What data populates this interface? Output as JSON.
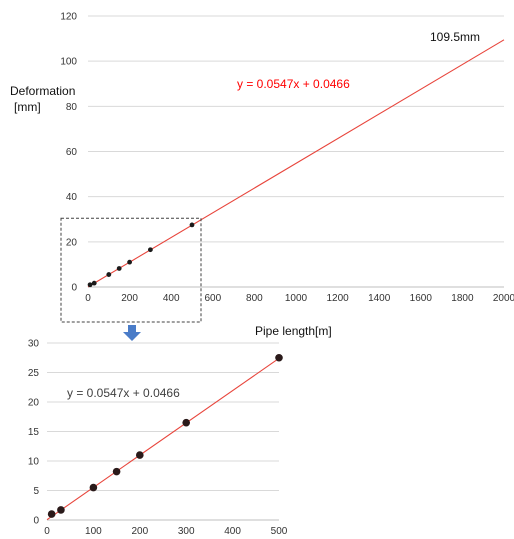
{
  "chart_data": [
    {
      "type": "scatter",
      "ylabel_line1": "Deformation",
      "ylabel_line2": "[mm]",
      "xlabel": "Pipe length[m]",
      "xlim": [
        0,
        2000
      ],
      "ylim": [
        0,
        120
      ],
      "xticks": [
        0,
        200,
        400,
        600,
        800,
        1000,
        1200,
        1400,
        1600,
        1800,
        2000
      ],
      "yticks": [
        0,
        20,
        40,
        60,
        80,
        100,
        120
      ],
      "grid": "horizontal",
      "series": [
        {
          "x": [
            10,
            30,
            100,
            150,
            200,
            300,
            500
          ],
          "y": [
            1.0,
            1.7,
            5.5,
            8.2,
            11.0,
            16.5,
            27.5
          ]
        }
      ],
      "trendline": {
        "slope": 0.0547,
        "intercept": 0.0466,
        "x_range": [
          0,
          2000
        ]
      },
      "equation": "y = 0.0547x + 0.0466",
      "equation_color": "#ff0000",
      "annotation": "109.5mm",
      "trend_color": "#e8453c",
      "marker_color": "#1a1a1a",
      "zoom_box": "dashed"
    },
    {
      "type": "scatter",
      "xlim": [
        0,
        500
      ],
      "ylim": [
        0,
        30
      ],
      "xticks": [
        0,
        100,
        200,
        300,
        400,
        500
      ],
      "yticks": [
        0,
        5,
        10,
        15,
        20,
        25,
        30
      ],
      "grid": "horizontal",
      "series": [
        {
          "x": [
            10,
            30,
            100,
            150,
            200,
            300,
            500
          ],
          "y": [
            1.0,
            1.7,
            5.5,
            8.2,
            11.0,
            16.5,
            27.5
          ]
        }
      ],
      "trendline": {
        "slope": 0.0547,
        "intercept": 0.0466,
        "x_range": [
          0,
          500
        ]
      },
      "equation": "y = 0.0547x + 0.0466",
      "trend_color": "#e8453c",
      "marker_color": "#2a1a1a"
    }
  ],
  "arrow_color": "#4a7cc8"
}
